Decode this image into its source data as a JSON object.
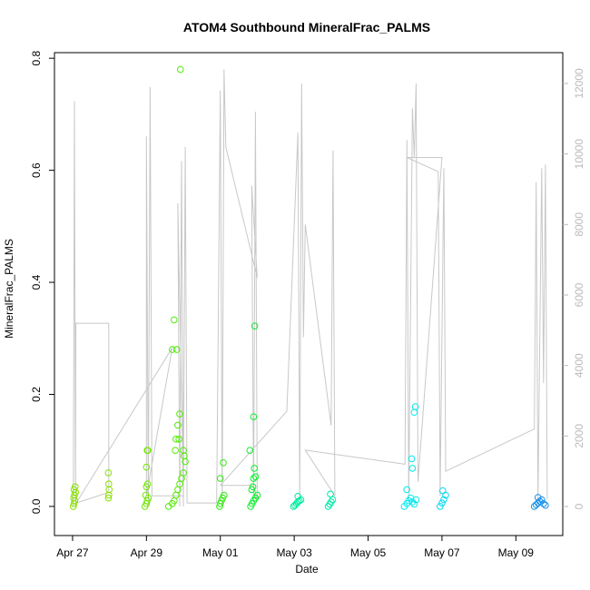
{
  "chart_data": {
    "type": "scatter",
    "title": "ATOM4 Southbound MineralFrac_PALMS",
    "xlabel": "Date",
    "ylabel": "MineralFrac_PALMS",
    "xlim": [
      -0.49,
      13.27
    ],
    "xticks": [
      {
        "value": 0,
        "label": "Apr 27"
      },
      {
        "value": 2,
        "label": "Apr 29"
      },
      {
        "value": 4,
        "label": "May 01"
      },
      {
        "value": 6,
        "label": "May 03"
      },
      {
        "value": 8,
        "label": "May 05"
      },
      {
        "value": 10,
        "label": "May 07"
      },
      {
        "value": 12,
        "label": "May 09"
      }
    ],
    "ylim": [
      -0.052,
      0.81
    ],
    "yticks": [
      {
        "value": 0,
        "label": "0.0"
      },
      {
        "value": 0.2,
        "label": "0.2"
      },
      {
        "value": 0.4,
        "label": "0.4"
      },
      {
        "value": 0.6,
        "label": "0.6"
      },
      {
        "value": 0.8,
        "label": "0.8"
      }
    ],
    "y2lim": [
      -824,
      12875
    ],
    "y2ticks": [
      0,
      2000,
      4000,
      6000,
      8000,
      10000,
      12000
    ],
    "series": [
      {
        "color": "#88e000",
        "x": [
          0.02,
          0.04,
          0.06,
          0.03,
          0.05,
          0.08,
          0.04,
          0.07
        ],
        "values": [
          0.0,
          0.005,
          0.01,
          0.015,
          0.02,
          0.025,
          0.03,
          0.035
        ]
      },
      {
        "color": "#88e000",
        "x": [
          0.97,
          0.98,
          0.99,
          0.98,
          0.97
        ],
        "values": [
          0.015,
          0.02,
          0.03,
          0.04,
          0.06
        ]
      },
      {
        "color": "#70e800",
        "x": [
          1.96,
          2.0,
          2.02,
          2.05,
          1.98,
          2.0,
          2.03,
          2.0,
          2.02,
          2.04
        ],
        "values": [
          0.0,
          0.005,
          0.01,
          0.015,
          0.02,
          0.035,
          0.04,
          0.07,
          0.1,
          0.1
        ]
      },
      {
        "color": "#50ec00",
        "x": [
          2.6,
          2.7,
          2.75,
          2.8,
          2.85,
          2.9,
          2.95,
          3.0,
          3.05,
          2.78,
          2.8,
          2.85,
          2.9,
          2.82,
          3.0,
          2.7,
          2.75,
          2.88,
          3.02,
          2.92
        ],
        "values": [
          0.0,
          0.005,
          0.01,
          0.02,
          0.03,
          0.04,
          0.05,
          0.06,
          0.08,
          0.1,
          0.12,
          0.145,
          0.165,
          0.28,
          0.1,
          0.28,
          0.333,
          0.12,
          0.09,
          0.78
        ]
      },
      {
        "color": "#30ec10",
        "x": [
          3.98,
          4.0,
          4.03,
          4.06,
          4.1,
          4.0,
          4.08
        ],
        "values": [
          0.0,
          0.005,
          0.01,
          0.015,
          0.02,
          0.05,
          0.078
        ]
      },
      {
        "color": "#10ec30",
        "x": [
          4.82,
          4.86,
          4.9,
          4.95,
          5.0,
          4.85,
          4.88,
          4.9,
          4.92,
          4.95,
          4.9,
          4.93,
          4.8
        ],
        "values": [
          0.0,
          0.005,
          0.01,
          0.015,
          0.02,
          0.03,
          0.035,
          0.05,
          0.068,
          0.053,
          0.16,
          0.322,
          0.1
        ]
      },
      {
        "color": "#00eca0",
        "x": [
          5.98,
          6.02,
          6.06,
          6.1,
          6.14,
          6.18,
          6.1
        ],
        "values": [
          0.0,
          0.002,
          0.005,
          0.008,
          0.01,
          0.012,
          0.018
        ]
      },
      {
        "color": "#00eca8",
        "x": [
          6.92,
          6.96,
          7.0,
          7.04,
          6.98
        ],
        "values": [
          0.0,
          0.004,
          0.008,
          0.012,
          0.022
        ]
      },
      {
        "color": "#00eaee",
        "x": [
          8.98,
          9.05,
          9.1,
          9.15,
          9.2,
          9.25,
          9.3,
          9.05,
          9.2,
          9.25,
          9.28,
          9.18
        ],
        "values": [
          0.0,
          0.005,
          0.01,
          0.015,
          0.008,
          0.004,
          0.012,
          0.03,
          0.068,
          0.168,
          0.178,
          0.085
        ]
      },
      {
        "color": "#00d8ee",
        "x": [
          9.95,
          10.0,
          10.05,
          10.1,
          10.02
        ],
        "values": [
          0.0,
          0.006,
          0.012,
          0.02,
          0.028
        ]
      },
      {
        "color": "#1890e8",
        "x": [
          12.5,
          12.55,
          12.6,
          12.65,
          12.7,
          12.75,
          12.8,
          12.6
        ],
        "values": [
          0.0,
          0.003,
          0.006,
          0.009,
          0.012,
          0.005,
          0.002,
          0.016
        ]
      }
    ],
    "altitude": {
      "axis": "y2",
      "color": "#c8c8c8",
      "x": [
        0.02,
        0.05,
        0.08,
        0.09,
        0.98,
        0.98,
        0.1,
        2.7,
        2.0,
        2.0,
        2.05,
        2.1,
        2.15,
        3.0,
        2.85,
        2.9,
        2.95,
        3.0,
        3.05,
        3.1,
        3.9,
        4.0,
        4.05,
        4.1,
        4.15,
        5.0,
        4.85,
        4.9,
        4.95,
        5.0,
        4.9,
        4.0,
        5.8,
        6.1,
        6.15,
        6.2,
        6.25,
        6.3,
        7.0,
        7.05,
        7.1,
        6.3,
        9.0,
        9.05,
        9.1,
        9.2,
        9.25,
        9.3,
        9.35,
        10.0,
        9.05,
        9.9,
        9.95,
        10.05,
        10.1,
        12.5,
        12.55,
        12.6,
        12.7,
        12.75,
        12.8,
        12.85
      ],
      "values": [
        0,
        11500,
        0,
        5200,
        5200,
        400,
        100,
        4500,
        300,
        10500,
        0,
        11900,
        300,
        300,
        8600,
        0,
        9800,
        0,
        10200,
        100,
        100,
        11800,
        0,
        12400,
        10200,
        6500,
        9100,
        100,
        11200,
        200,
        600,
        600,
        2700,
        10600,
        200,
        12000,
        4800,
        8000,
        2300,
        10100,
        300,
        1600,
        1200,
        10400,
        200,
        11300,
        9900,
        12000,
        700,
        9900,
        9900,
        9500,
        300,
        9600,
        1000,
        2200,
        9200,
        200,
        9600,
        3500,
        9700,
        200
      ]
    }
  }
}
